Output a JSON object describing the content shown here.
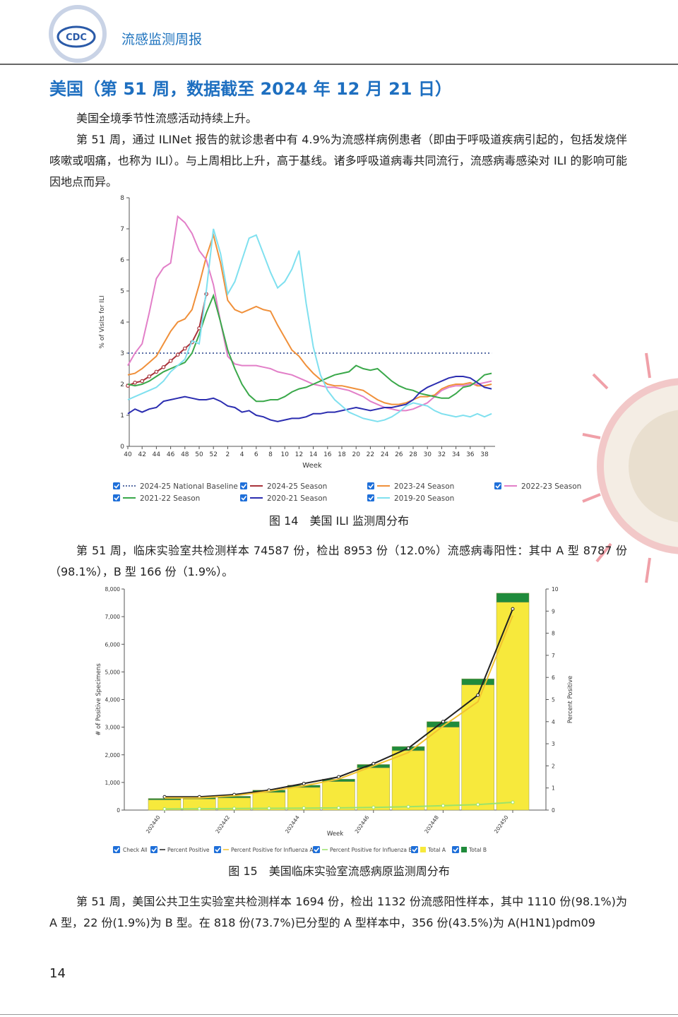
{
  "header": {
    "logo_label": "CDC",
    "title": "流感监测周报"
  },
  "section_title": "美国（第 51 周，数据截至 2024 年 12 月 21 日）",
  "paragraphs": [
    "美国全境季节性流感活动持续上升。",
    "第 51 周，通过 ILINet 报告的就诊患者中有 4.9%为流感样病例患者（即由于呼吸道疾病引起的，包括发烧伴咳嗽或咽痛，也称为 ILI）。与上周相比上升，高于基线。诸多呼吸道病毒共同流行，流感病毒感染对 ILI 的影响可能因地点而异。",
    "第 51 周，临床实验室共检测样本 74587 份，检出 8953 份（12.0%）流感病毒阳性：其中 A 型 8787 份（98.1%），B 型 166 份（1.9%）。",
    "第 51 周，美国公共卫生实验室共检测样本 1694 份，检出 1132 份流感阳性样本，其中 1110 份(98.1%)为 A 型，22 份(1.9%)为 B 型。在 818 份(73.7%)已分型的 A 型样本中，356 份(43.5%)为 A(H1N1)pdm09"
  ],
  "chart_data": [
    {
      "type": "line",
      "caption": "图 14　美国 ILI 监测周分布",
      "x_label": "Week",
      "y_label": "% of Visits for ILI",
      "categories": [
        "40",
        null,
        "42",
        null,
        "44",
        null,
        "46",
        null,
        "48",
        null,
        "50",
        null,
        "52",
        null,
        "2",
        null,
        "4",
        null,
        "6",
        null,
        "8",
        null,
        "10",
        null,
        "12",
        null,
        "14",
        null,
        "16",
        null,
        "18",
        null,
        "20",
        null,
        "22",
        null,
        "24",
        null,
        "26",
        null,
        "28",
        null,
        "30",
        null,
        "32",
        null,
        "34",
        null,
        "36",
        null,
        "38",
        null
      ],
      "ylim": [
        0,
        8
      ],
      "yticks": [
        0,
        1,
        2,
        3,
        4,
        5,
        6,
        7,
        8
      ],
      "series": [
        {
          "name": "2024-25 National Baseline",
          "color": "#5a6fa6",
          "dash": true,
          "values": [
            3,
            3,
            3,
            3,
            3,
            3,
            3,
            3,
            3,
            3,
            3,
            3,
            3,
            3,
            3,
            3,
            3,
            3,
            3,
            3,
            3,
            3,
            3,
            3,
            3,
            3,
            3,
            3,
            3,
            3,
            3,
            3,
            3,
            3,
            3,
            3,
            3,
            3,
            3,
            3,
            3,
            3,
            3,
            3,
            3,
            3,
            3,
            3,
            3,
            3,
            3,
            3
          ]
        },
        {
          "name": "2024-25 Season",
          "color": "#a8323a",
          "markers": true,
          "values": [
            1.95,
            2.05,
            2.1,
            2.25,
            2.4,
            2.55,
            2.75,
            2.95,
            3.15,
            3.35,
            3.8,
            4.9,
            null,
            null,
            null,
            null,
            null,
            null,
            null,
            null,
            null,
            null,
            null,
            null,
            null,
            null,
            null,
            null,
            null,
            null,
            null,
            null,
            null,
            null,
            null,
            null,
            null,
            null,
            null,
            null,
            null,
            null,
            null,
            null,
            null,
            null,
            null,
            null,
            null,
            null,
            null,
            null
          ]
        },
        {
          "name": "2023-24 Season",
          "color": "#f0903a",
          "values": [
            2.3,
            2.35,
            2.5,
            2.7,
            2.9,
            3.3,
            3.7,
            4.0,
            4.1,
            4.4,
            5.2,
            6.1,
            6.8,
            5.9,
            4.7,
            4.4,
            4.3,
            4.4,
            4.5,
            4.4,
            4.35,
            3.9,
            3.5,
            3.1,
            2.9,
            2.6,
            2.35,
            2.15,
            2.0,
            1.95,
            1.95,
            1.9,
            1.85,
            1.8,
            1.65,
            1.5,
            1.4,
            1.35,
            1.35,
            1.4,
            1.5,
            1.6,
            1.6,
            1.65,
            1.85,
            1.95,
            2.0,
            2.0,
            2.05,
            1.95,
            1.95,
            2.0
          ]
        },
        {
          "name": "2022-23 Season",
          "color": "#e27fc8",
          "values": [
            2.6,
            3.0,
            3.3,
            4.3,
            5.4,
            5.75,
            5.9,
            7.4,
            7.2,
            6.85,
            6.3,
            6.0,
            5.2,
            4.0,
            2.9,
            2.65,
            2.6,
            2.6,
            2.6,
            2.55,
            2.5,
            2.4,
            2.35,
            2.3,
            2.2,
            2.1,
            2.0,
            1.95,
            1.9,
            1.9,
            1.85,
            1.8,
            1.7,
            1.6,
            1.45,
            1.35,
            1.25,
            1.2,
            1.15,
            1.15,
            1.2,
            1.3,
            1.4,
            1.6,
            1.8,
            1.9,
            1.95,
            1.95,
            2.0,
            2.0,
            2.05,
            2.1
          ]
        },
        {
          "name": "2021-22 Season",
          "color": "#3aa84a",
          "values": [
            2.0,
            1.95,
            2.0,
            2.1,
            2.25,
            2.4,
            2.5,
            2.6,
            2.7,
            3.0,
            3.6,
            4.3,
            4.85,
            4.0,
            3.1,
            2.5,
            2.0,
            1.65,
            1.45,
            1.45,
            1.5,
            1.5,
            1.6,
            1.75,
            1.85,
            1.9,
            2.0,
            2.1,
            2.2,
            2.3,
            2.35,
            2.4,
            2.6,
            2.5,
            2.45,
            2.5,
            2.3,
            2.1,
            1.95,
            1.85,
            1.8,
            1.7,
            1.65,
            1.6,
            1.55,
            1.55,
            1.7,
            1.9,
            1.95,
            2.1,
            2.3,
            2.35
          ]
        },
        {
          "name": "2020-21 Season",
          "color": "#2b2db0",
          "values": [
            1.05,
            1.2,
            1.1,
            1.2,
            1.25,
            1.45,
            1.5,
            1.55,
            1.6,
            1.55,
            1.5,
            1.5,
            1.55,
            1.45,
            1.3,
            1.25,
            1.1,
            1.15,
            1.0,
            0.95,
            0.85,
            0.8,
            0.85,
            0.9,
            0.9,
            0.95,
            1.05,
            1.05,
            1.1,
            1.1,
            1.15,
            1.2,
            1.25,
            1.2,
            1.15,
            1.2,
            1.25,
            1.25,
            1.3,
            1.35,
            1.5,
            1.75,
            1.9,
            2.0,
            2.1,
            2.2,
            2.25,
            2.25,
            2.2,
            2.05,
            1.9,
            1.85
          ]
        },
        {
          "name": "2019-20 Season",
          "color": "#7fe0ef",
          "values": [
            1.5,
            1.6,
            1.7,
            1.8,
            1.9,
            2.1,
            2.4,
            2.6,
            2.8,
            3.4,
            3.3,
            5.0,
            7.0,
            6.2,
            4.9,
            5.3,
            6.0,
            6.7,
            6.8,
            6.2,
            5.6,
            5.1,
            5.3,
            5.7,
            6.3,
            4.6,
            3.2,
            2.3,
            1.8,
            1.5,
            1.3,
            1.1,
            1.0,
            0.9,
            0.85,
            0.8,
            0.85,
            0.95,
            1.1,
            1.3,
            1.4,
            1.35,
            1.3,
            1.15,
            1.05,
            1.0,
            0.95,
            1.0,
            0.95,
            1.05,
            0.95,
            1.05
          ]
        }
      ]
    },
    {
      "type": "bar",
      "caption": "图 15　美国临床实验室流感病原监测周分布",
      "x_label": "Week",
      "y_label": "# of Positive Specimens",
      "y2_label": "Percent Positive",
      "legend_check_all": "Check All",
      "categories": [
        "202440",
        null,
        "202442",
        null,
        "202444",
        null,
        "202446",
        null,
        "202448",
        null,
        "202450"
      ],
      "ylim": [
        0,
        8000
      ],
      "yticks": [
        0,
        {
          "value": 1000,
          "label": "1,000"
        },
        {
          "value": 2000,
          "label": "2,000"
        },
        {
          "value": 3000,
          "label": "3,000"
        },
        {
          "value": 4000,
          "label": "4,000"
        },
        {
          "value": 5000,
          "label": "5,000"
        },
        {
          "value": 6000,
          "label": "6,000"
        },
        {
          "value": 7000,
          "label": "7,000"
        },
        {
          "value": 8000,
          "label": "8,000"
        }
      ],
      "y2lim": [
        0,
        10
      ],
      "y2ticks": [
        0,
        1,
        2,
        3,
        4,
        5,
        6,
        7,
        8,
        9,
        10
      ],
      "series": [
        {
          "name": "Percent Positive",
          "type": "line",
          "axis": "y2",
          "color": "#222222",
          "markers": true,
          "values": [
            0.6,
            0.6,
            0.7,
            0.9,
            1.2,
            1.5,
            2.1,
            2.8,
            4.0,
            5.2,
            9.1
          ]
        },
        {
          "name": "Percent Positive for Influenza A",
          "type": "line",
          "axis": "y2",
          "color": "#f2c230",
          "values": [
            0.55,
            0.55,
            0.65,
            0.85,
            1.1,
            1.4,
            2.0,
            2.6,
            3.8,
            4.9,
            8.8
          ]
        },
        {
          "name": "Percent Positive for Influenza B",
          "type": "line",
          "axis": "y2",
          "color": "#9be36a",
          "markers": true,
          "values": [
            0.05,
            0.06,
            0.07,
            0.08,
            0.09,
            0.1,
            0.12,
            0.15,
            0.2,
            0.25,
            0.35
          ]
        },
        {
          "name": "Total A",
          "type": "bar",
          "color": "#f7e93c",
          "values": [
            370,
            400,
            440,
            640,
            820,
            1030,
            1530,
            2150,
            3000,
            4530,
            7520
          ]
        },
        {
          "name": "Total B",
          "type": "bar",
          "color": "#1f8b3b",
          "values": [
            50,
            50,
            60,
            80,
            80,
            90,
            120,
            150,
            200,
            220,
            330
          ]
        }
      ]
    }
  ],
  "page_number": "14"
}
